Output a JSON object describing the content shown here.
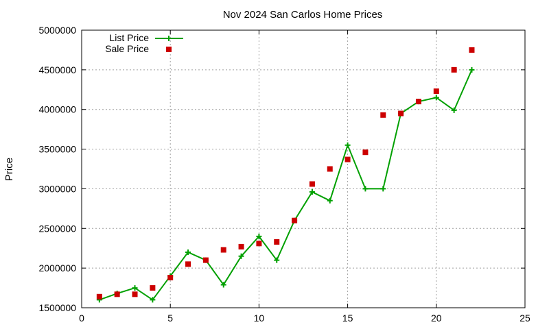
{
  "chart_data": {
    "type": "line",
    "title": "Nov 2024 San Carlos Home Prices",
    "ylabel": "Price",
    "xlabel": "",
    "xlim": [
      0,
      25
    ],
    "ylim": [
      1500000,
      5000000
    ],
    "x_ticks": [
      0,
      5,
      10,
      15,
      20,
      25
    ],
    "y_ticks": [
      1500000,
      2000000,
      2500000,
      3000000,
      3500000,
      4000000,
      4500000,
      5000000
    ],
    "grid": true,
    "legend_position": "top-left",
    "series": [
      {
        "name": "List Price",
        "style": "line+cross",
        "color": "#00a000",
        "x": [
          1,
          2,
          3,
          4,
          5,
          6,
          7,
          8,
          9,
          10,
          11,
          12,
          13,
          14,
          15,
          16,
          17,
          18,
          19,
          20,
          21,
          22
        ],
        "y": [
          1600000,
          1680000,
          1750000,
          1600000,
          1900000,
          2200000,
          2100000,
          1790000,
          2150000,
          2400000,
          2100000,
          2600000,
          2960000,
          2850000,
          3550000,
          3000000,
          3000000,
          3950000,
          4100000,
          4150000,
          3990000,
          4500000
        ]
      },
      {
        "name": "Sale Price",
        "style": "square",
        "color": "#cc0000",
        "x": [
          1,
          2,
          3,
          4,
          5,
          6,
          7,
          8,
          9,
          10,
          11,
          12,
          13,
          14,
          15,
          16,
          17,
          18,
          19,
          20,
          21,
          22
        ],
        "y": [
          1640000,
          1670000,
          1670000,
          1750000,
          1880000,
          2050000,
          2100000,
          2230000,
          2270000,
          2310000,
          2330000,
          2600000,
          3060000,
          3250000,
          3370000,
          3460000,
          3930000,
          3950000,
          4100000,
          4230000,
          4500000,
          4750000
        ]
      }
    ]
  }
}
